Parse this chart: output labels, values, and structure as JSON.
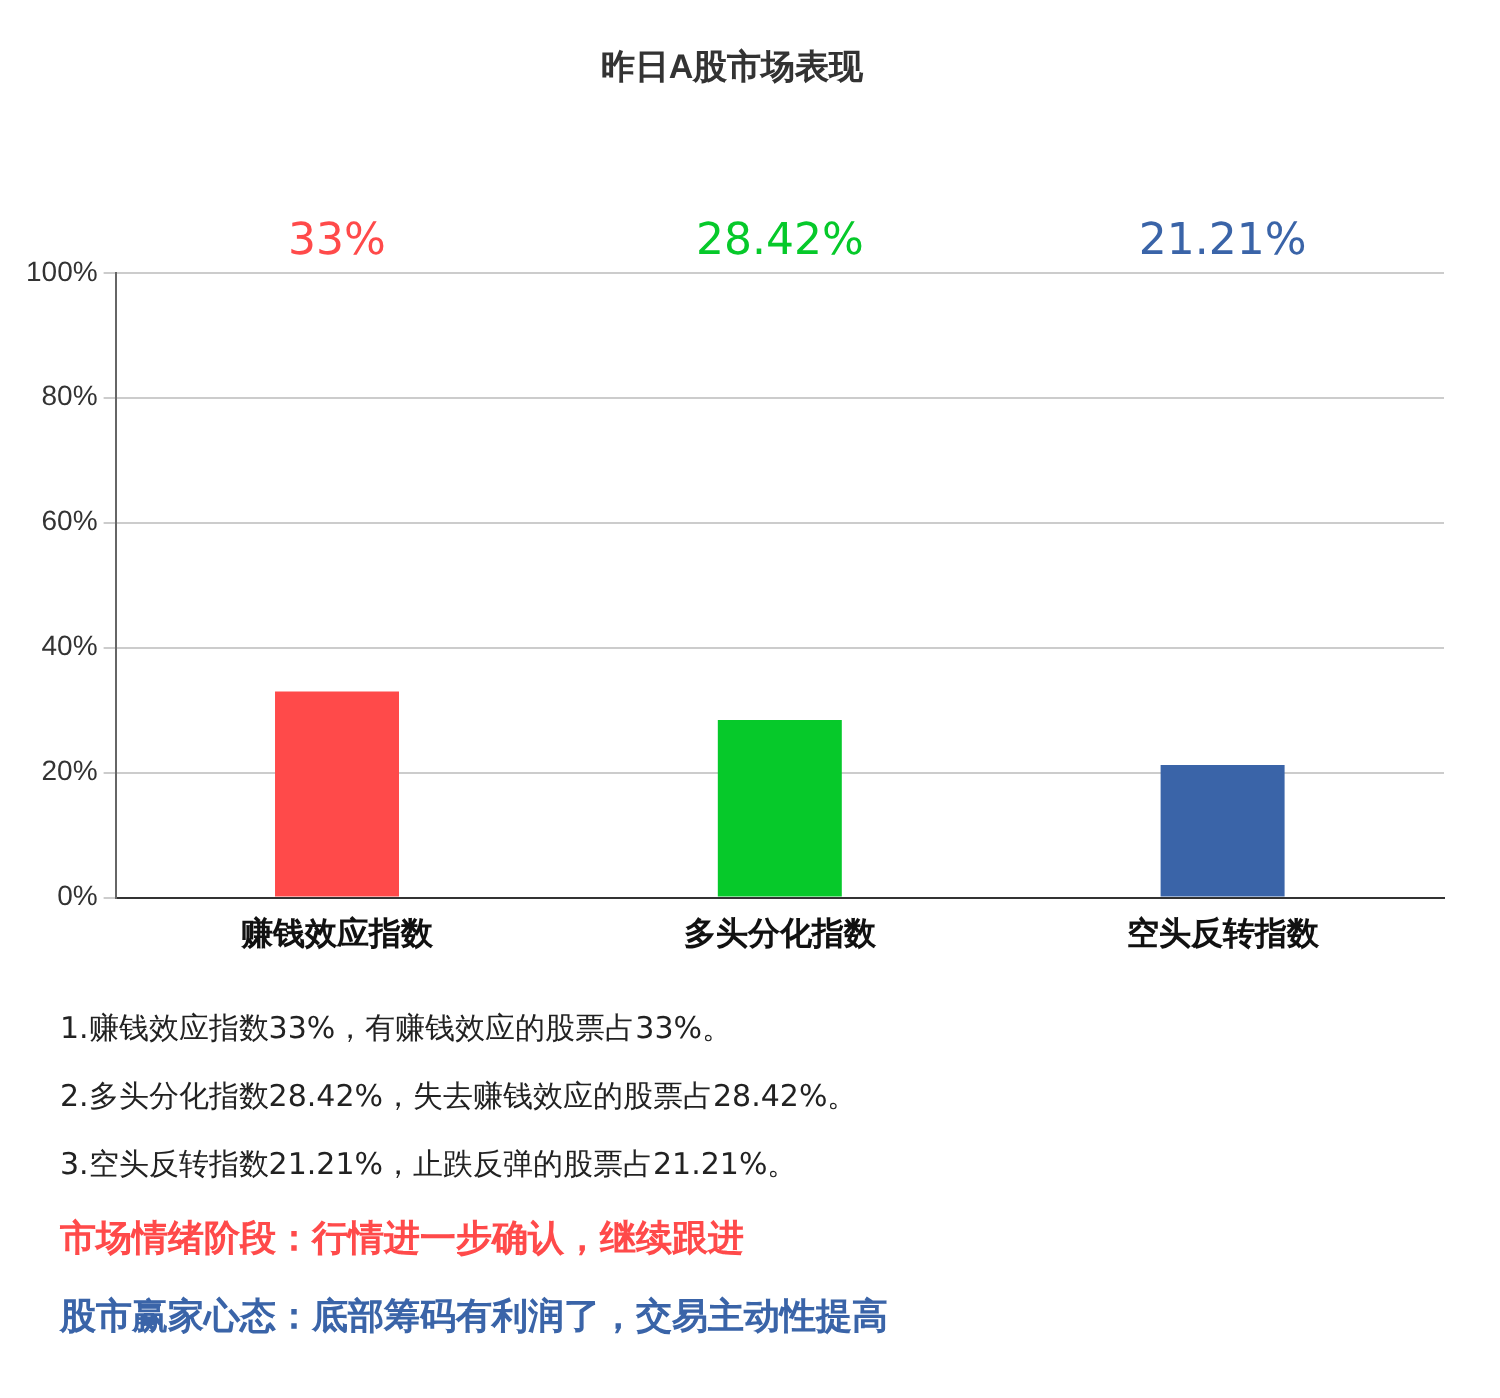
{
  "chart_data": {
    "type": "bar",
    "title": "昨日A股市场表现",
    "categories": [
      "赚钱效应指数",
      "多头分化指数",
      "空头反转指数"
    ],
    "values": [
      33,
      28.42,
      21.21
    ],
    "colors": [
      "#ff4a4a",
      "#06c92a",
      "#3a64a8"
    ],
    "ylim": [
      0,
      100
    ],
    "yticks": [
      {
        "value": 0,
        "label": "0%"
      },
      {
        "value": 20,
        "label": "20%"
      },
      {
        "value": 40,
        "label": "40%"
      },
      {
        "value": 60,
        "label": "60%"
      },
      {
        "value": 80,
        "label": "80%"
      },
      {
        "value": 100,
        "label": "100%"
      }
    ],
    "grid": "y",
    "legend": false,
    "annotations": [
      "33%",
      "28.42%",
      "21.21%",
      "1.赚钱效应指数33%，有赚钱效应的股票占33%。",
      "2.多头分化指数28.42%，失去赚钱效应的股票占28.42%。",
      "3.空头反转指数21.21%，止跌反弹的股票占21.21%。",
      "市场情绪阶段：行情进一步确认，继续跟进",
      "股市赢家心态：底部筹码有利润了，交易主动性提高"
    ]
  }
}
